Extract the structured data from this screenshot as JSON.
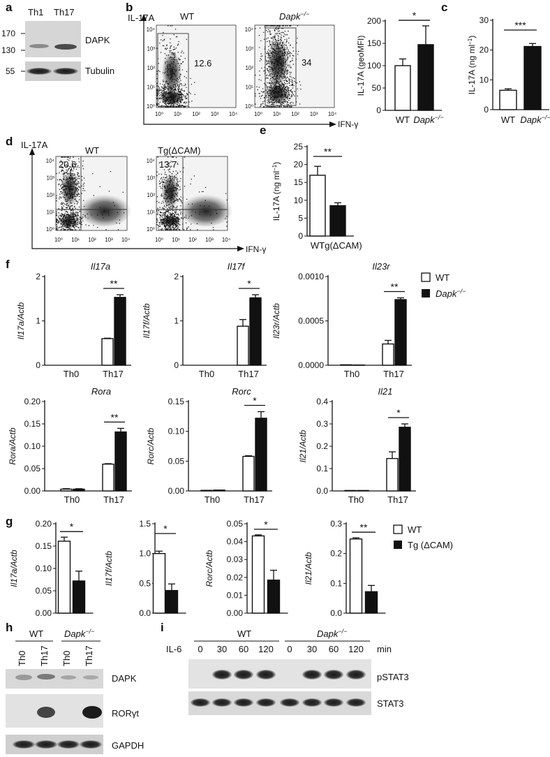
{
  "panel_labels": {
    "a": "a",
    "b": "b",
    "c": "c",
    "d": "d",
    "e": "e",
    "f": "f",
    "g": "g",
    "h": "h",
    "i": "i"
  },
  "legend": {
    "wt": "WT",
    "dapk_base": "Dapk",
    "dapk_sup": "−/−",
    "tg": "Tg (ΔCAM)",
    "colors": {
      "open": "#ffffff",
      "filled": "#111111"
    }
  },
  "blot_a": {
    "lanes": [
      "Th1",
      "Th17"
    ],
    "mw": [
      "170",
      "130",
      "55"
    ],
    "proteins": [
      "DAPK",
      "Tubulin"
    ]
  },
  "flow_b": {
    "yaxis": "IL-17A",
    "xaxis": "IFN-γ",
    "panels": [
      {
        "title": "WT",
        "value": "12.6"
      },
      {
        "title_base": "Dapk",
        "title_sup": "−/−",
        "value": "34"
      }
    ],
    "ticks": [
      "10⁰",
      "10¹",
      "10²",
      "10³",
      "10⁴"
    ]
  },
  "flow_d": {
    "yaxis": "IL-17A",
    "xaxis": "IFN-γ",
    "panels": [
      {
        "title": "WT",
        "value": "20.6"
      },
      {
        "title": "Tg(ΔCAM)",
        "value": "13.7"
      }
    ],
    "ticks": [
      "10⁰",
      "10¹",
      "10²",
      "10³",
      "10⁴"
    ]
  },
  "chart_data": [
    {
      "panel": "b",
      "type": "bar",
      "categories": [
        "WT",
        "Dapk−/−"
      ],
      "values": [
        100,
        147
      ],
      "errors": [
        15,
        42
      ],
      "ylabel": "IL-17A (geoMFI)",
      "ylim": [
        0,
        200
      ],
      "yticks": [
        "0",
        "50",
        "100",
        "150",
        "200"
      ],
      "significance": "*"
    },
    {
      "panel": "c",
      "type": "bar",
      "categories": [
        "WT",
        "Dapk−/−"
      ],
      "values": [
        6.5,
        21.2
      ],
      "errors": [
        0.5,
        1.0
      ],
      "ylabel": "IL-17A (ng ml⁻¹)",
      "ylim": [
        0,
        30
      ],
      "yticks": [
        "0",
        "10",
        "20",
        "30"
      ],
      "significance": "***"
    },
    {
      "panel": "e",
      "type": "bar",
      "categories": [
        "WT",
        "Tg(ΔCAM)"
      ],
      "values": [
        17,
        8.5
      ],
      "errors": [
        2.5,
        0.8
      ],
      "ylabel": "IL-17A (ng ml⁻¹)",
      "ylim": [
        0,
        25
      ],
      "yticks": [
        "0",
        "5",
        "10",
        "15",
        "20",
        "25"
      ],
      "significance": "**"
    },
    {
      "panel": "f",
      "type": "bar",
      "title": "Il17a",
      "ylabel": "Il17a/Actb",
      "categories": [
        "Th0",
        "Th17"
      ],
      "series": [
        {
          "name": "WT",
          "values": [
            0,
            0.6
          ],
          "errors": [
            0,
            0.01
          ]
        },
        {
          "name": "Dapk−/−",
          "values": [
            0,
            1.53
          ],
          "errors": [
            0,
            0.06
          ]
        }
      ],
      "ylim": [
        0,
        2
      ],
      "yticks": [
        "0",
        "1",
        "2"
      ],
      "significance": "**"
    },
    {
      "panel": "f",
      "type": "bar",
      "title": "Il17f",
      "ylabel": "Il17f/Actb",
      "categories": [
        "Th0",
        "Th17"
      ],
      "series": [
        {
          "name": "WT",
          "values": [
            0,
            0.88
          ],
          "errors": [
            0,
            0.15
          ]
        },
        {
          "name": "Dapk−/−",
          "values": [
            0,
            1.52
          ],
          "errors": [
            0,
            0.07
          ]
        }
      ],
      "ylim": [
        0,
        2
      ],
      "yticks": [
        "0",
        "1",
        "2"
      ],
      "significance": "*"
    },
    {
      "panel": "f",
      "type": "bar",
      "title": "Il23r",
      "ylabel": "Il23r/Actb",
      "categories": [
        "Th0",
        "Th17"
      ],
      "series": [
        {
          "name": "WT",
          "values": [
            5e-06,
            0.00024
          ],
          "errors": [
            0,
            4e-05
          ]
        },
        {
          "name": "Dapk−/−",
          "values": [
            3e-06,
            0.00074
          ],
          "errors": [
            0,
            2e-05
          ]
        }
      ],
      "ylim": [
        0,
        0.001
      ],
      "yticks": [
        "0.0000",
        "0.0005",
        "0.0010"
      ],
      "significance": "**"
    },
    {
      "panel": "f",
      "type": "bar",
      "title": "Rora",
      "ylabel": "Rora/Actb",
      "categories": [
        "Th0",
        "Th17"
      ],
      "series": [
        {
          "name": "WT",
          "values": [
            0.004,
            0.06
          ],
          "errors": [
            0.001,
            0.001
          ]
        },
        {
          "name": "Dapk−/−",
          "values": [
            0.004,
            0.132
          ],
          "errors": [
            0.001,
            0.008
          ]
        }
      ],
      "ylim": [
        0,
        0.2
      ],
      "yticks": [
        "0.00",
        "0.05",
        "0.10",
        "0.15",
        "0.20"
      ],
      "significance": "**"
    },
    {
      "panel": "f",
      "type": "bar",
      "title": "Rorc",
      "ylabel": "Rorc/Actb",
      "categories": [
        "Th0",
        "Th17"
      ],
      "series": [
        {
          "name": "WT",
          "values": [
            0.001,
            0.058
          ],
          "errors": [
            0,
            0.001
          ]
        },
        {
          "name": "Dapk−/−",
          "values": [
            0.0015,
            0.122
          ],
          "errors": [
            0,
            0.011
          ]
        }
      ],
      "ylim": [
        0,
        0.15
      ],
      "yticks": [
        "0.00",
        "0.05",
        "0.10",
        "0.15"
      ],
      "significance": "*"
    },
    {
      "panel": "f",
      "type": "bar",
      "title": "Il21",
      "ylabel": "Il21/Actb",
      "categories": [
        "Th0",
        "Th17"
      ],
      "series": [
        {
          "name": "WT",
          "values": [
            0.002,
            0.145
          ],
          "errors": [
            0,
            0.03
          ]
        },
        {
          "name": "Dapk−/−",
          "values": [
            0.002,
            0.285
          ],
          "errors": [
            0,
            0.015
          ]
        }
      ],
      "ylim": [
        0,
        0.4
      ],
      "yticks": [
        "0.0",
        "0.1",
        "0.2",
        "0.3",
        "0.4"
      ],
      "significance": "*"
    },
    {
      "panel": "g",
      "type": "bar",
      "ylabel": "Il17a/Actb",
      "categories": [
        "WT",
        "Tg (ΔCAM)"
      ],
      "values": [
        0.161,
        0.072
      ],
      "errors": [
        0.009,
        0.022
      ],
      "ylim": [
        0,
        0.2
      ],
      "yticks": [
        "0.00",
        "0.05",
        "0.10",
        "0.15",
        "0.20"
      ],
      "significance": "*"
    },
    {
      "panel": "g",
      "type": "bar",
      "ylabel": "Il17f/Actb",
      "categories": [
        "WT",
        "Tg (ΔCAM)"
      ],
      "values": [
        1.0,
        0.38
      ],
      "errors": [
        0.04,
        0.11
      ],
      "ylim": [
        0,
        1.5
      ],
      "yticks": [
        "0.0",
        "0.5",
        "1.0",
        "1.5"
      ],
      "significance": "*"
    },
    {
      "panel": "g",
      "type": "bar",
      "ylabel": "Rorc/Actb",
      "categories": [
        "WT",
        "Tg (ΔCAM)"
      ],
      "values": [
        0.0432,
        0.0185
      ],
      "errors": [
        0.0006,
        0.0055
      ],
      "ylim": [
        0,
        0.05
      ],
      "yticks": [
        "0.00",
        "0.01",
        "0.02",
        "0.03",
        "0.04",
        "0.05"
      ],
      "significance": "*"
    },
    {
      "panel": "g",
      "type": "bar",
      "ylabel": "Il21/Actb",
      "categories": [
        "WT",
        "Tg (ΔCAM)"
      ],
      "values": [
        0.249,
        0.072
      ],
      "errors": [
        0.004,
        0.021
      ],
      "ylim": [
        0,
        0.3
      ],
      "yticks": [
        "0.0",
        "0.1",
        "0.2",
        "0.3"
      ],
      "significance": "**"
    }
  ],
  "blot_h": {
    "groups": [
      "WT",
      "Dapk"
    ],
    "group_sup": "−/−",
    "lanes": [
      "Th0",
      "Th17",
      "Th0",
      "Th17"
    ],
    "proteins": [
      "DAPK",
      "RORγt",
      "GAPDH"
    ]
  },
  "blot_i": {
    "treatment": "IL-6",
    "groups": [
      "WT",
      "Dapk"
    ],
    "group_sup": "−/−",
    "times": [
      "0",
      "30",
      "60",
      "120",
      "0",
      "30",
      "60",
      "120"
    ],
    "unit": "min",
    "proteins": [
      "pSTAT3",
      "STAT3"
    ]
  }
}
